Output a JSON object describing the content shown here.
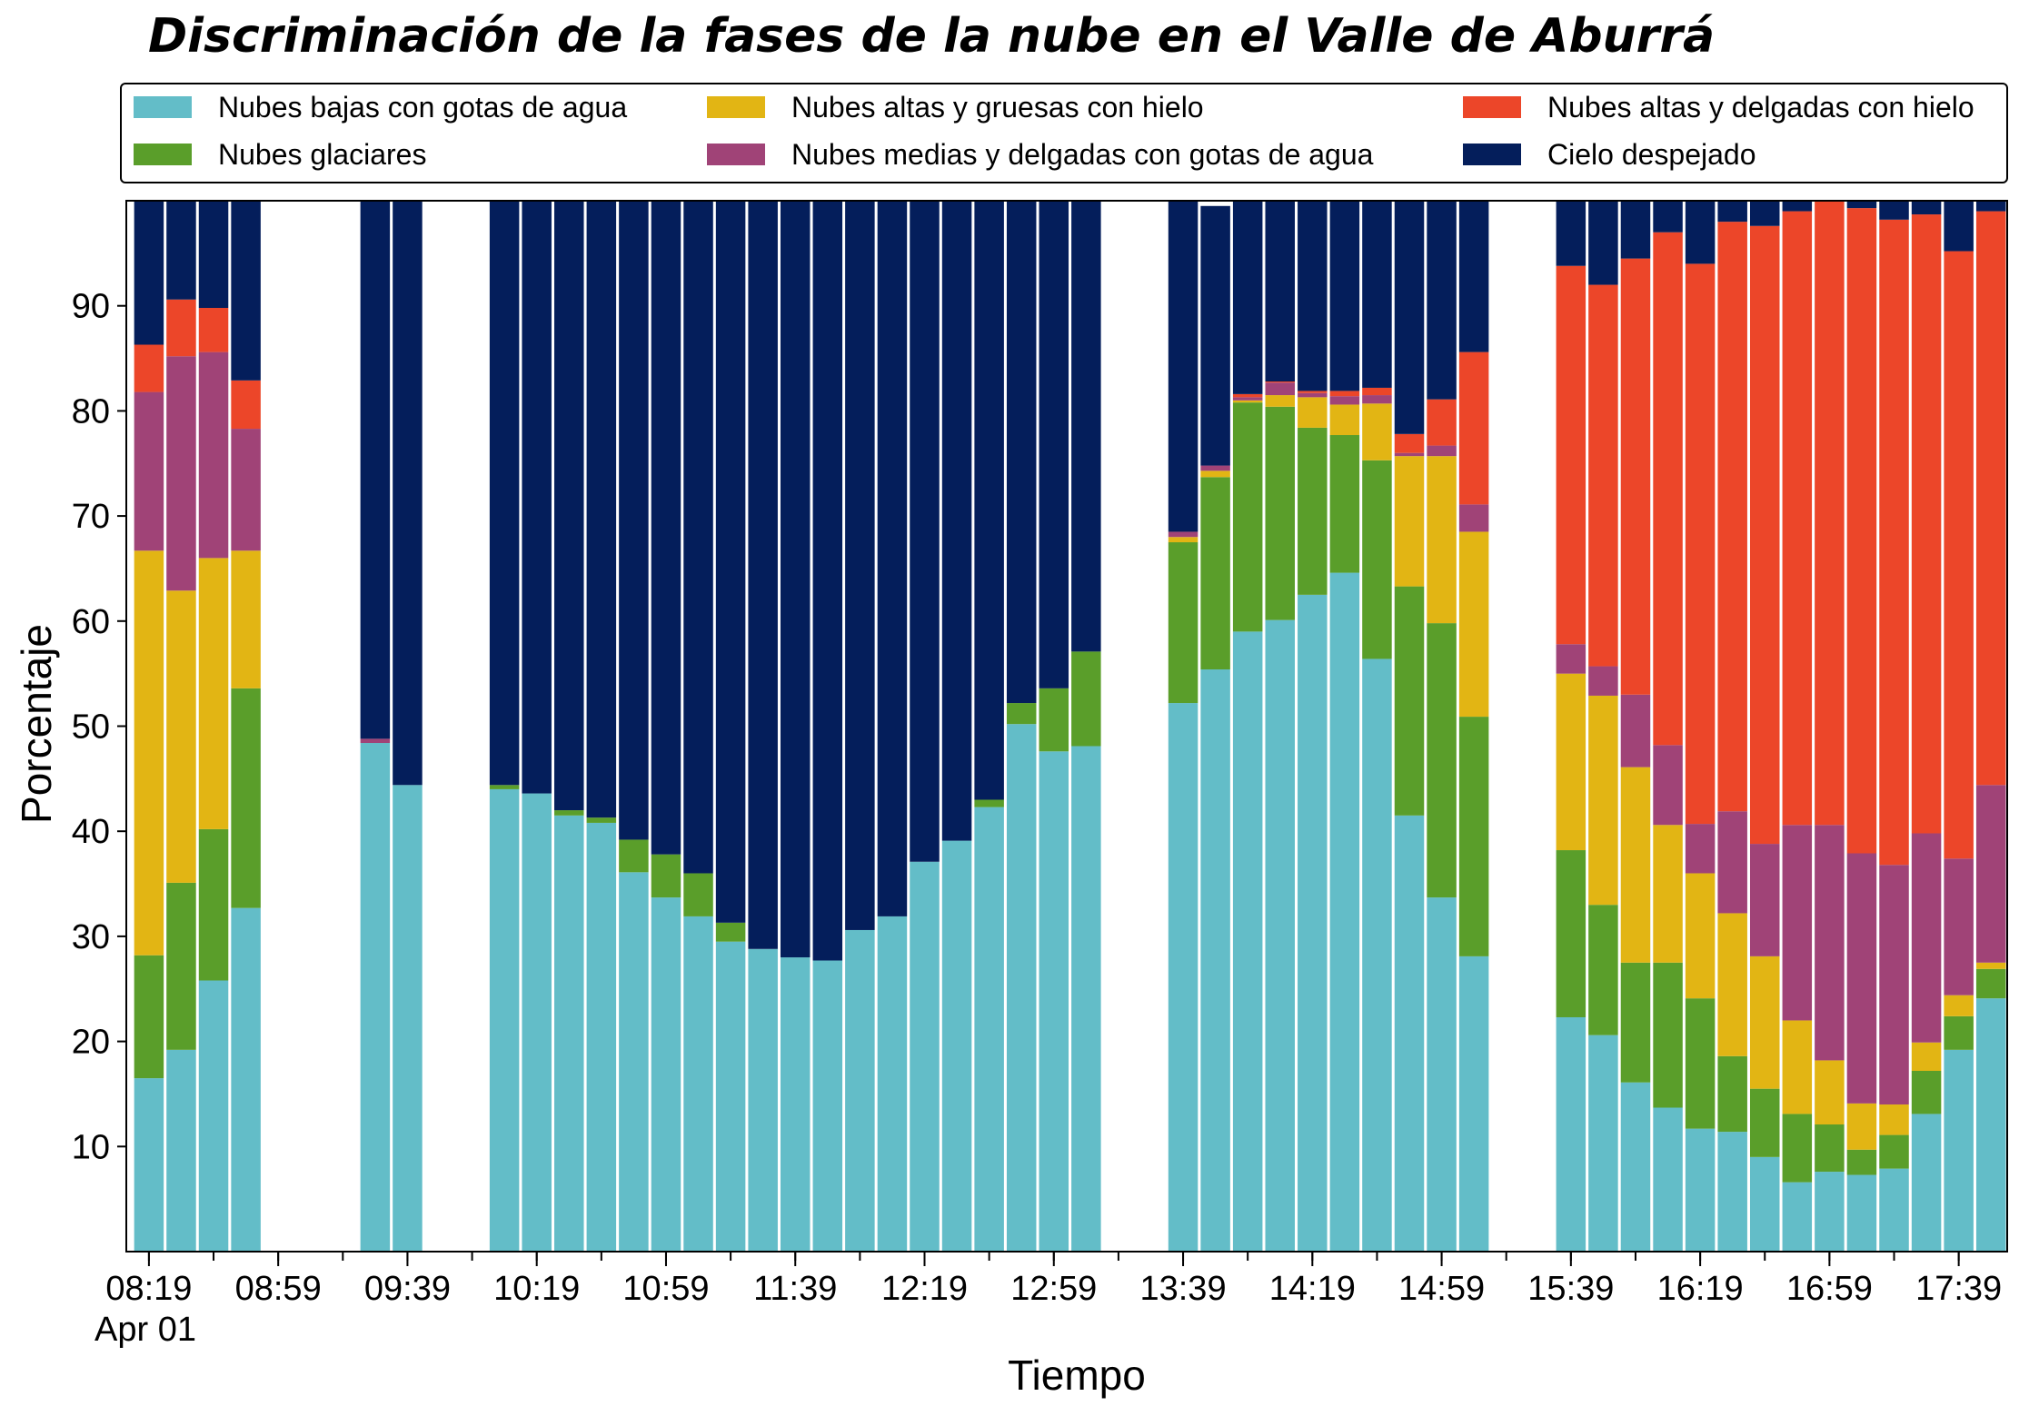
{
  "chart_data": {
    "type": "bar",
    "stacked": true,
    "title": "Discriminación de la fases de la nube en el Valle de Aburrá",
    "xlabel": "Tiempo",
    "ylabel": "Porcentaje",
    "ylim": [
      0,
      100
    ],
    "yticks": [
      10,
      20,
      30,
      40,
      50,
      60,
      70,
      80,
      90
    ],
    "x_tick_labels": [
      "08:19",
      "08:59",
      "09:39",
      "10:19",
      "10:59",
      "11:39",
      "12:19",
      "12:59",
      "13:39",
      "14:19",
      "14:59",
      "15:39",
      "16:19",
      "16:59",
      "17:39"
    ],
    "x_date_label": "Apr 01",
    "grid": false,
    "legend_position": "top",
    "x": [
      "08:19",
      "08:29",
      "08:39",
      "08:49",
      "09:29",
      "09:39",
      "10:09",
      "10:19",
      "10:29",
      "10:39",
      "10:49",
      "10:59",
      "11:09",
      "11:19",
      "11:29",
      "11:39",
      "11:49",
      "11:59",
      "12:09",
      "12:19",
      "12:29",
      "12:39",
      "12:49",
      "12:59",
      "13:09",
      "13:39",
      "13:49",
      "13:59",
      "14:09",
      "14:19",
      "14:29",
      "14:39",
      "14:49",
      "14:59",
      "15:09",
      "15:39",
      "15:49",
      "15:59",
      "16:09",
      "16:19",
      "16:29",
      "16:39",
      "16:49",
      "16:59",
      "17:09",
      "17:19",
      "17:29",
      "17:39",
      "17:49"
    ],
    "series": [
      {
        "name": "Nubes bajas con gotas de agua",
        "color": "#63BDC8",
        "values": [
          16.5,
          19.2,
          25.8,
          32.7,
          48.4,
          44.4,
          44.0,
          43.6,
          41.5,
          40.8,
          36.1,
          33.7,
          31.9,
          29.5,
          28.8,
          28.0,
          27.7,
          30.6,
          31.9,
          37.1,
          39.1,
          42.3,
          50.2,
          47.6,
          48.1,
          52.2,
          55.4,
          59.0,
          60.1,
          62.5,
          64.6,
          56.4,
          41.5,
          33.7,
          28.1,
          22.3,
          20.6,
          16.1,
          13.7,
          11.7,
          11.4,
          9.0,
          6.6,
          7.6,
          7.3,
          7.9,
          13.1,
          19.2,
          24.1
        ]
      },
      {
        "name": "Nubes glaciares",
        "color": "#5A9E2A",
        "values": [
          11.7,
          15.9,
          14.4,
          20.9,
          0,
          0,
          0.4,
          0,
          0.5,
          0.5,
          3.1,
          4.1,
          4.1,
          1.8,
          0,
          0,
          0,
          0,
          0,
          0,
          0,
          0.7,
          2.0,
          6.0,
          9.0,
          15.3,
          18.3,
          21.8,
          20.3,
          15.9,
          13.1,
          18.9,
          21.8,
          26.1,
          22.8,
          15.9,
          12.4,
          11.4,
          13.8,
          12.4,
          7.2,
          6.5,
          6.5,
          4.5,
          2.4,
          3.2,
          4.1,
          3.2,
          2.8
        ]
      },
      {
        "name": "Nubes altas y gruesas con hielo",
        "color": "#E2B514",
        "values": [
          38.5,
          27.8,
          25.8,
          13.1,
          0,
          0,
          0,
          0,
          0,
          0,
          0,
          0,
          0,
          0,
          0,
          0,
          0,
          0,
          0,
          0,
          0,
          0,
          0,
          0,
          0,
          0.5,
          0.6,
          0.2,
          1.1,
          2.9,
          2.9,
          5.4,
          12.4,
          15.9,
          17.6,
          16.8,
          19.9,
          18.6,
          13.1,
          11.9,
          13.6,
          12.6,
          8.9,
          6.1,
          4.4,
          2.9,
          2.7,
          2.0,
          0.6
        ]
      },
      {
        "name": "Nubes medias y delgadas con gotas de agua",
        "color": "#A04377",
        "values": [
          15.1,
          22.3,
          19.6,
          11.6,
          0.4,
          0,
          0,
          0,
          0,
          0,
          0,
          0,
          0,
          0,
          0,
          0,
          0,
          0,
          0,
          0,
          0,
          0,
          0,
          0,
          0,
          0.5,
          0.5,
          0.3,
          1.2,
          0.4,
          0.8,
          0.8,
          0.3,
          1.0,
          2.6,
          2.8,
          2.8,
          6.9,
          7.6,
          4.7,
          9.7,
          10.7,
          18.6,
          22.4,
          23.8,
          22.8,
          19.9,
          13.0,
          16.9
        ]
      },
      {
        "name": "Nubes altas y delgadas con hielo",
        "color": "#EC4629",
        "values": [
          4.5,
          5.4,
          4.2,
          4.6,
          0,
          0,
          0,
          0,
          0,
          0,
          0,
          0,
          0,
          0,
          0,
          0,
          0,
          0,
          0,
          0,
          0,
          0,
          0,
          0,
          0,
          0,
          0,
          0.3,
          0.1,
          0.2,
          0.5,
          0.7,
          1.8,
          4.4,
          14.5,
          36.0,
          36.3,
          41.5,
          48.8,
          53.3,
          56.1,
          58.8,
          58.4,
          59.4,
          61.4,
          61.4,
          58.9,
          57.8,
          54.6
        ]
      },
      {
        "name": "Cielo despejado",
        "color": "#041E5B",
        "values": [
          13.7,
          9.4,
          10.2,
          17.1,
          51.2,
          55.6,
          55.6,
          56.4,
          58.0,
          58.7,
          60.8,
          62.2,
          64.0,
          68.7,
          71.2,
          72.0,
          72.3,
          69.4,
          68.1,
          62.9,
          60.9,
          57.0,
          47.8,
          46.4,
          42.9,
          31.5,
          24.7,
          18.4,
          17.2,
          18.1,
          18.1,
          17.8,
          22.2,
          18.9,
          14.4,
          6.2,
          8.0,
          5.5,
          3.0,
          6.0,
          2.0,
          2.4,
          1.0,
          0,
          0.7,
          1.8,
          1.3,
          4.8,
          1.0
        ]
      }
    ]
  }
}
